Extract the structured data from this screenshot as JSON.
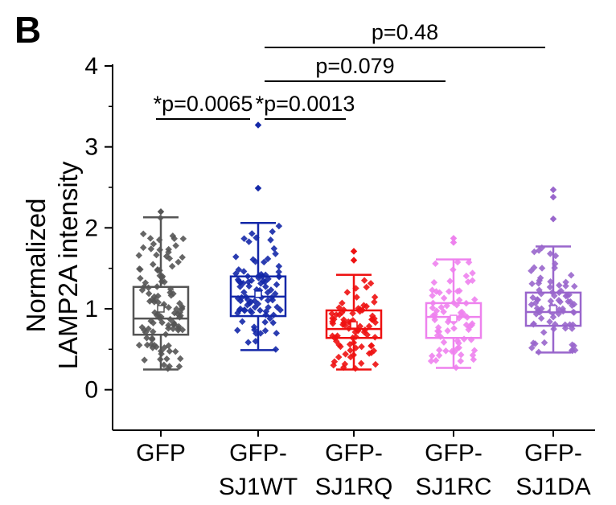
{
  "panel_label": "B",
  "chart_data": {
    "type": "box",
    "ylabel_lines": [
      "Normalized",
      "LAMP2A intensity"
    ],
    "ylim": [
      -0.5,
      4.0
    ],
    "yticks": [
      0,
      1,
      2,
      3,
      4
    ],
    "categories": [
      {
        "name": "GFP",
        "label_lines": [
          "GFP"
        ],
        "color": "#555555",
        "whisker_low": 0.25,
        "q1": 0.68,
        "median": 0.88,
        "q3": 1.27,
        "whisker_high": 2.13,
        "mean": 1.0,
        "outliers": [
          2.2
        ],
        "n_points": 110
      },
      {
        "name": "GFP-SJ1WT",
        "label_lines": [
          "GFP-",
          "SJ1WT"
        ],
        "color": "#1428a8",
        "whisker_low": 0.49,
        "q1": 0.91,
        "median": 1.15,
        "q3": 1.4,
        "whisker_high": 2.06,
        "mean": 1.18,
        "outliers": [
          3.27,
          2.49
        ],
        "n_points": 90
      },
      {
        "name": "GFP-SJ1RQ",
        "label_lines": [
          "GFP-",
          "SJ1RQ"
        ],
        "color": "#ee1111",
        "whisker_low": 0.25,
        "q1": 0.64,
        "median": 0.75,
        "q3": 0.98,
        "whisker_high": 1.42,
        "mean": 0.8,
        "outliers": [
          1.71,
          1.6
        ],
        "n_points": 80
      },
      {
        "name": "GFP-SJ1RC",
        "label_lines": [
          "GFP-",
          "SJ1RC"
        ],
        "color": "#ee82ee",
        "whisker_low": 0.27,
        "q1": 0.64,
        "median": 0.9,
        "q3": 1.07,
        "whisker_high": 1.61,
        "mean": 0.88,
        "outliers": [
          1.87,
          1.82
        ],
        "n_points": 75
      },
      {
        "name": "GFP-SJ1DA",
        "label_lines": [
          "GFP-",
          "SJ1DA"
        ],
        "color": "#9966cc",
        "whisker_low": 0.46,
        "q1": 0.79,
        "median": 0.96,
        "q3": 1.2,
        "whisker_high": 1.77,
        "mean": 1.0,
        "outliers": [
          2.47,
          2.38,
          2.11
        ],
        "n_points": 80
      }
    ],
    "comparisons": [
      {
        "label": "*p=0.0065",
        "from": 0,
        "to": 1,
        "level": 1
      },
      {
        "label": "*p=0.0013",
        "from": 1,
        "to": 2,
        "level": 1
      },
      {
        "label": "p=0.079",
        "from": 1,
        "to": 3,
        "level": 2
      },
      {
        "label": "p=0.48",
        "from": 1,
        "to": 4,
        "level": 3
      }
    ]
  }
}
